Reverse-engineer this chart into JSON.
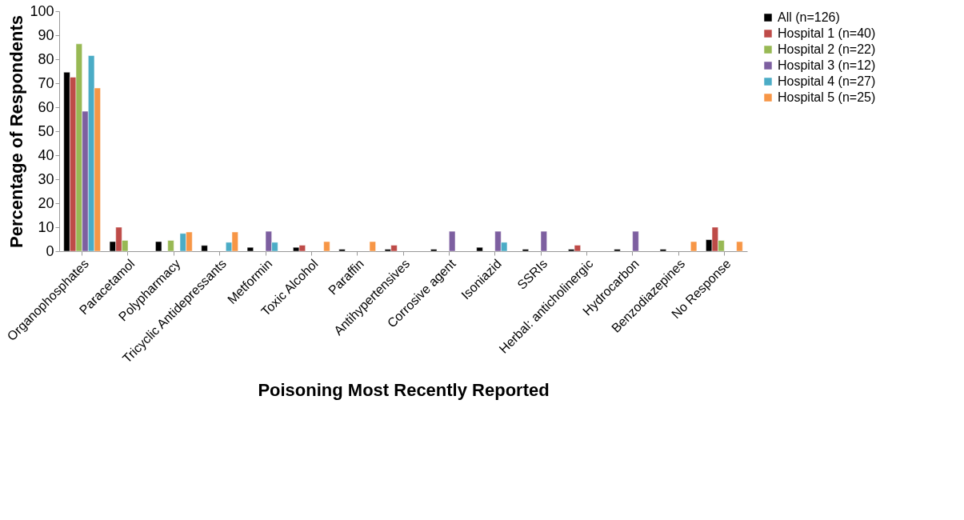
{
  "chart_data": {
    "type": "bar",
    "xlabel": "Poisoning Most Recently Reported",
    "ylabel": "Percentage of Respondents",
    "categories": [
      "Organophosphates",
      "Paracetamol",
      "Polypharmacy",
      "Tricyclic Antidepressants",
      "Metformin",
      "Toxic Alcohol",
      "Paraffin",
      "Antihypertensives",
      "Corrosive agent",
      "Isoniazid",
      "SSRIs",
      "Herbal: anticholinergic",
      "Hydrocarbon",
      "Benzodiazepines",
      "No Response"
    ],
    "series": [
      {
        "name": "All (n=126)",
        "color": "#000000",
        "values": [
          74.6,
          4,
          4,
          2.4,
          1.6,
          1.6,
          0.8,
          0.8,
          0.8,
          1.6,
          0.8,
          0.8,
          0.8,
          0.8,
          4.8
        ]
      },
      {
        "name": "Hospital 1 (n=40)",
        "color": "#be4b48",
        "values": [
          72.5,
          10,
          null,
          null,
          null,
          2.5,
          null,
          2.5,
          null,
          null,
          null,
          2.5,
          null,
          null,
          10
        ]
      },
      {
        "name": "Hospital 2 (n=22)",
        "color": "#98b954",
        "values": [
          86.4,
          4.5,
          4.5,
          null,
          null,
          null,
          null,
          null,
          null,
          null,
          null,
          null,
          null,
          null,
          4.5
        ]
      },
      {
        "name": "Hospital 3 (n=12)",
        "color": "#7d5fa0",
        "values": [
          58.3,
          null,
          null,
          null,
          8.3,
          null,
          null,
          null,
          8.3,
          8.3,
          8.3,
          null,
          8.3,
          null,
          null
        ]
      },
      {
        "name": "Hospital 4 (n=27)",
        "color": "#4bacc6",
        "values": [
          81.5,
          null,
          7.4,
          3.7,
          3.7,
          null,
          null,
          null,
          null,
          3.7,
          null,
          null,
          null,
          null,
          null
        ]
      },
      {
        "name": "Hospital 5 (n=25)",
        "color": "#f79646",
        "values": [
          68,
          null,
          8,
          8,
          null,
          4,
          4,
          null,
          null,
          null,
          null,
          null,
          null,
          4,
          4
        ]
      }
    ],
    "ylim": [
      0,
      100
    ],
    "yticks": [
      0,
      10,
      20,
      30,
      40,
      50,
      60,
      70,
      80,
      90,
      100
    ],
    "grid": false,
    "legend": "right"
  }
}
